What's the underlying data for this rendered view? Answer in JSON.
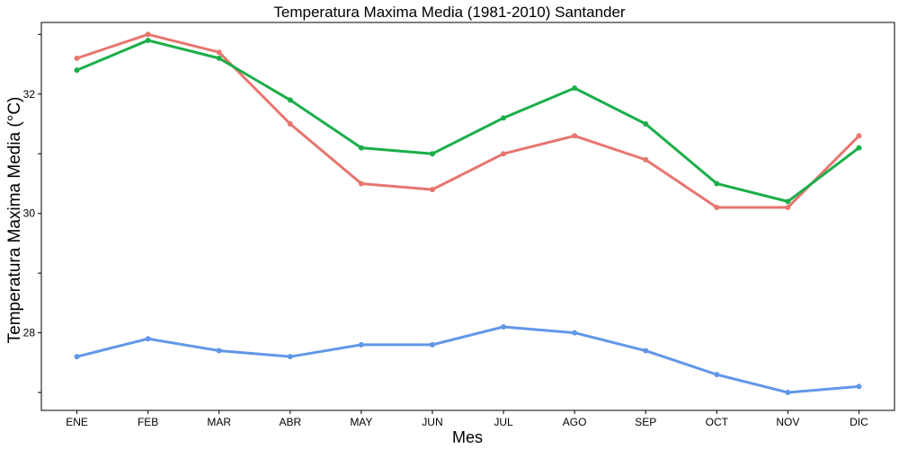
{
  "chart_data": {
    "type": "line",
    "title": "Temperatura Maxima Media (1981-2010)  Santander",
    "xlabel": "Mes",
    "ylabel": "Temperatura Maxima Media  (°C)",
    "categories": [
      "ENE",
      "FEB",
      "MAR",
      "ABR",
      "MAY",
      "JUN",
      "JUL",
      "AGO",
      "SEP",
      "OCT",
      "NOV",
      "DIC"
    ],
    "yticks": [
      28,
      30,
      32
    ],
    "ylim": [
      26.7,
      33.2
    ],
    "grid": false,
    "legend": "none",
    "series": [
      {
        "color": "#E7766F",
        "values": [
          32.6,
          33.0,
          32.7,
          31.5,
          30.5,
          30.4,
          31.0,
          31.3,
          30.9,
          30.1,
          30.1,
          31.3
        ]
      },
      {
        "color": "#1BAE49",
        "values": [
          32.4,
          32.9,
          32.6,
          31.9,
          31.1,
          31.0,
          31.6,
          32.1,
          31.5,
          30.5,
          30.2,
          31.1
        ]
      },
      {
        "color": "#6197E8",
        "values": [
          27.6,
          27.9,
          27.7,
          27.6,
          27.8,
          27.8,
          28.1,
          28.0,
          27.7,
          27.3,
          27.0,
          27.1
        ]
      }
    ]
  }
}
